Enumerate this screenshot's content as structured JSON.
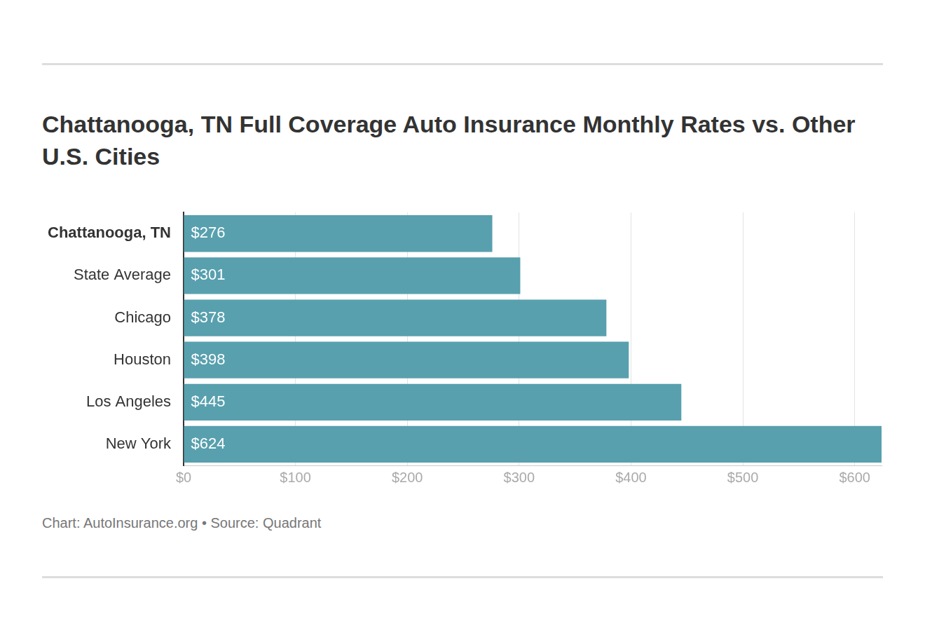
{
  "chart_data": {
    "type": "bar",
    "orientation": "horizontal",
    "title": "Chattanooga, TN Full Coverage Auto Insurance Monthly Rates vs. Other U.S. Cities",
    "source": "Chart: AutoInsurance.org • Source: Quadrant",
    "categories": [
      "Chattanooga, TN",
      "State Average",
      "Chicago",
      "Houston",
      "Los Angeles",
      "New York"
    ],
    "values": [
      276,
      301,
      378,
      398,
      445,
      624
    ],
    "value_labels": [
      "$276",
      "$301",
      "$378",
      "$398",
      "$445",
      "$624"
    ],
    "data_labels": true,
    "color": "#58a0ae",
    "xlim": [
      0,
      624
    ],
    "xticks": [
      {
        "value": 0,
        "label": "$0"
      },
      {
        "value": 100,
        "label": "$100"
      },
      {
        "value": 200,
        "label": "$200"
      },
      {
        "value": 300,
        "label": "$300"
      },
      {
        "value": 400,
        "label": "$400"
      },
      {
        "value": 500,
        "label": "$500"
      },
      {
        "value": 600,
        "label": "$600"
      }
    ],
    "grid": true
  }
}
